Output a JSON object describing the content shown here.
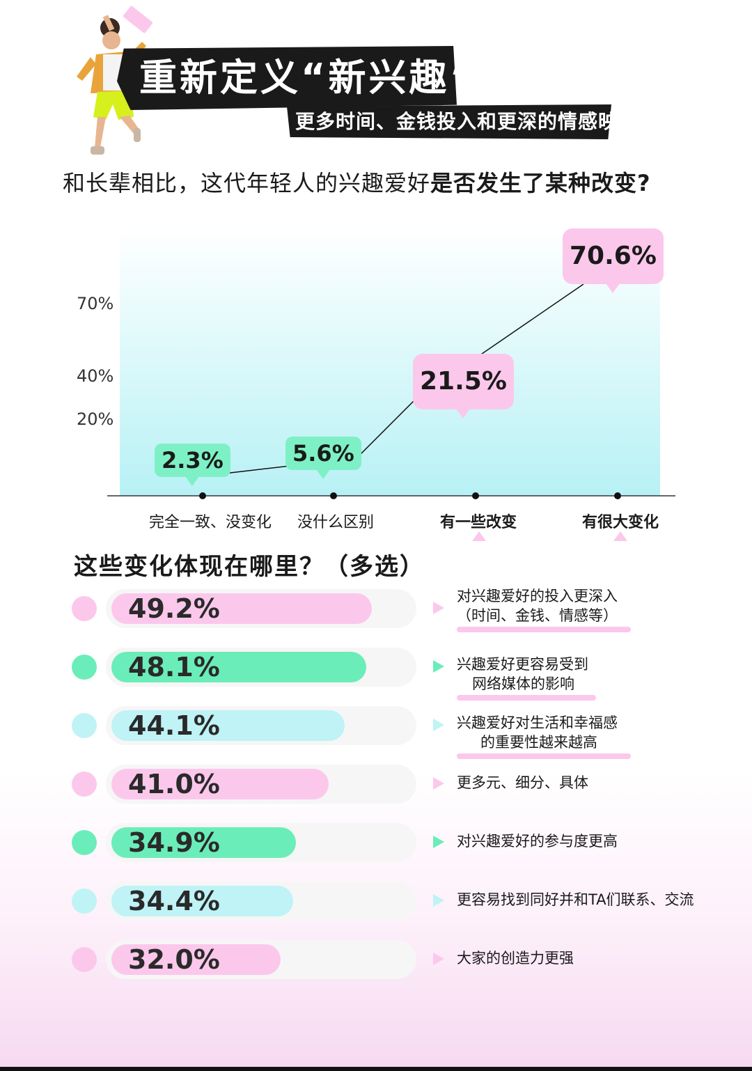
{
  "header": {
    "title": "重新定义“新兴趣”",
    "subtitle": "更多时间、金钱投入和更深的情感映射"
  },
  "question": {
    "part1": "和长辈相比，这代年轻人的兴趣爱好",
    "part2": "是否发生了某种改变?"
  },
  "chart_data": [
    {
      "type": "line",
      "categories": [
        "完全一致、没变化",
        "没什么区别",
        "有一些改变",
        "有很大变化"
      ],
      "values": [
        2.3,
        5.6,
        21.5,
        70.6
      ],
      "value_labels": [
        "2.3%",
        "5.6%",
        "21.5%",
        "70.6%"
      ],
      "y_ticks": [
        "20%",
        "40%",
        "70%"
      ],
      "title": "和长辈相比，这代年轻人的兴趣爱好是否发生了某种改变?"
    },
    {
      "type": "bar",
      "orientation": "horizontal",
      "title": "这些变化体现在哪里？（多选）",
      "categories": [
        "对兴趣爱好的投入更深入（时间、金钱、情感等）",
        "兴趣爱好更容易受到网络媒体的影响",
        "兴趣爱好对生活和幸福感的重要性越来越高",
        "更多元、细分、具体",
        "对兴趣爱好的参与度更高",
        "更容易找到同好并和TA们联系、交流",
        "大家的创造力更强"
      ],
      "values": [
        49.2,
        48.1,
        44.1,
        41.0,
        34.9,
        34.4,
        32.0
      ],
      "value_labels": [
        "49.2%",
        "48.1%",
        "44.1%",
        "41.0%",
        "34.9%",
        "34.4%",
        "32.0%"
      ]
    }
  ],
  "bars_section": {
    "title": "这些变化体现在哪里？（多选）",
    "rows": [
      {
        "value": 49.2,
        "label": "49.2%",
        "color": "#fbc8ec",
        "desc": [
          "对兴趣爱好的投入更深入",
          "（时间、金钱、情感等）"
        ]
      },
      {
        "value": 48.1,
        "label": "48.1%",
        "color": "#6bedb9",
        "desc": [
          "兴趣爱好更容易受到",
          "网络媒体的影响"
        ]
      },
      {
        "value": 44.1,
        "label": "44.1%",
        "color": "#bff3f6",
        "desc": [
          "兴趣爱好对生活和幸福感",
          "的重要性越来越高"
        ]
      },
      {
        "value": 41.0,
        "label": "41.0%",
        "color": "#fbc8ec",
        "desc": [
          "更多元、细分、具体"
        ]
      },
      {
        "value": 34.9,
        "label": "34.9%",
        "color": "#6bedb9",
        "desc": [
          "对兴趣爱好的参与度更高"
        ]
      },
      {
        "value": 34.4,
        "label": "34.4%",
        "color": "#bff3f6",
        "desc": [
          "更容易找到同好并和TA们联系、交流"
        ]
      },
      {
        "value": 32.0,
        "label": "32.0%",
        "color": "#fbc8ec",
        "desc": [
          "大家的创造力更强"
        ]
      }
    ]
  },
  "colors": {
    "pink": "#fbc8ec",
    "green": "#6bedb9",
    "cyan": "#bff3f6",
    "dark": "#1a1a1a"
  },
  "icons": [
    "person-illustration",
    "triangle-pointer-icon",
    "arrow-right-icon"
  ]
}
